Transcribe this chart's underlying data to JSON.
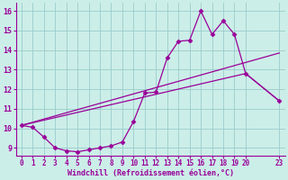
{
  "bg_color": "#cceee8",
  "grid_color": "#99cccc",
  "line_color": "#990099",
  "marker": "D",
  "marker_size": 2.5,
  "xlabel": "Windchill (Refroidissement éolien,°C)",
  "xlim": [
    -0.5,
    23.5
  ],
  "ylim": [
    8.6,
    16.4
  ],
  "xticks": [
    0,
    1,
    2,
    3,
    4,
    5,
    6,
    7,
    8,
    9,
    10,
    11,
    12,
    13,
    14,
    15,
    16,
    17,
    18,
    19,
    20,
    23
  ],
  "yticks": [
    9,
    10,
    11,
    12,
    13,
    14,
    15,
    16
  ],
  "line1_x": [
    0,
    1,
    2,
    3,
    4,
    5,
    6,
    7,
    8,
    9,
    10,
    11,
    12,
    13,
    14,
    15,
    16,
    17,
    18,
    19,
    20,
    23
  ],
  "line1_y": [
    10.15,
    10.05,
    9.55,
    9.0,
    8.85,
    8.8,
    8.9,
    9.0,
    9.1,
    9.3,
    10.35,
    11.8,
    11.85,
    13.6,
    14.45,
    14.5,
    16.0,
    14.8,
    15.5,
    14.8,
    12.8,
    11.4
  ],
  "line2_x": [
    0,
    23
  ],
  "line2_y": [
    10.15,
    13.85
  ],
  "line3_x": [
    0,
    20,
    23
  ],
  "line3_y": [
    10.15,
    12.8,
    11.4
  ]
}
